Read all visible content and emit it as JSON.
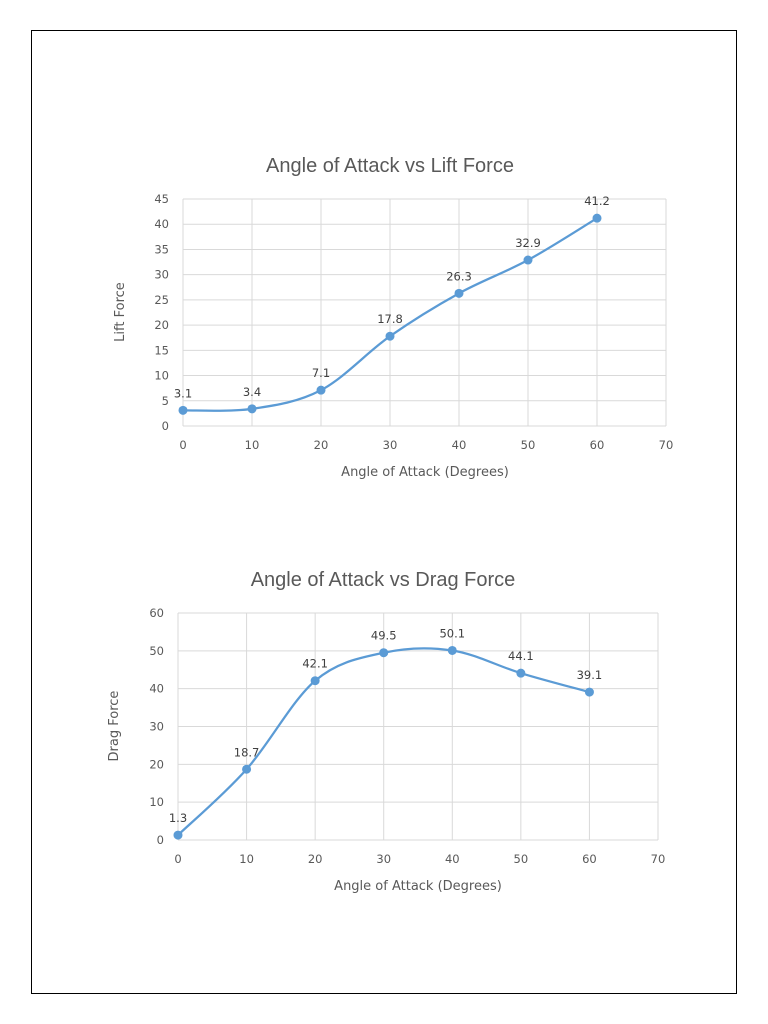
{
  "chart_data": [
    {
      "type": "line",
      "title": "Angle of Attack vs Lift Force",
      "xlabel": "Angle of Attack (Degrees)",
      "ylabel": "Lift Force",
      "x": [
        0,
        10,
        20,
        30,
        40,
        50,
        60
      ],
      "series": [
        {
          "values": [
            3.1,
            3.4,
            7.1,
            17.8,
            26.3,
            32.9,
            41.2
          ]
        }
      ],
      "data_labels": [
        "3.1",
        "3.4",
        "7.1",
        "17.8",
        "26.3",
        "32.9",
        "41.2"
      ],
      "xlim": [
        0,
        70
      ],
      "ylim": [
        0,
        45
      ],
      "xticks": [
        0,
        10,
        20,
        30,
        40,
        50,
        60,
        70
      ],
      "yticks": [
        0,
        5,
        10,
        15,
        20,
        25,
        30,
        35,
        40,
        45
      ],
      "smooth": true,
      "markers": true,
      "grid": true,
      "legend": "none",
      "color": "#5b9bd5"
    },
    {
      "type": "line",
      "title": "Angle of Attack vs Drag Force",
      "xlabel": "Angle of Attack (Degrees)",
      "ylabel": "Drag Force",
      "x": [
        0,
        10,
        20,
        30,
        40,
        50,
        60
      ],
      "series": [
        {
          "values": [
            1.3,
            18.7,
            42.1,
            49.5,
            50.1,
            44.1,
            39.1
          ]
        }
      ],
      "data_labels": [
        "1.3",
        "18.7",
        "42.1",
        "49.5",
        "50.1",
        "44.1",
        "39.1"
      ],
      "xlim": [
        0,
        70
      ],
      "ylim": [
        0,
        60
      ],
      "xticks": [
        0,
        10,
        20,
        30,
        40,
        50,
        60,
        70
      ],
      "yticks": [
        0,
        10,
        20,
        30,
        40,
        50,
        60
      ],
      "smooth": true,
      "markers": true,
      "grid": true,
      "legend": "none",
      "color": "#5b9bd5"
    }
  ]
}
